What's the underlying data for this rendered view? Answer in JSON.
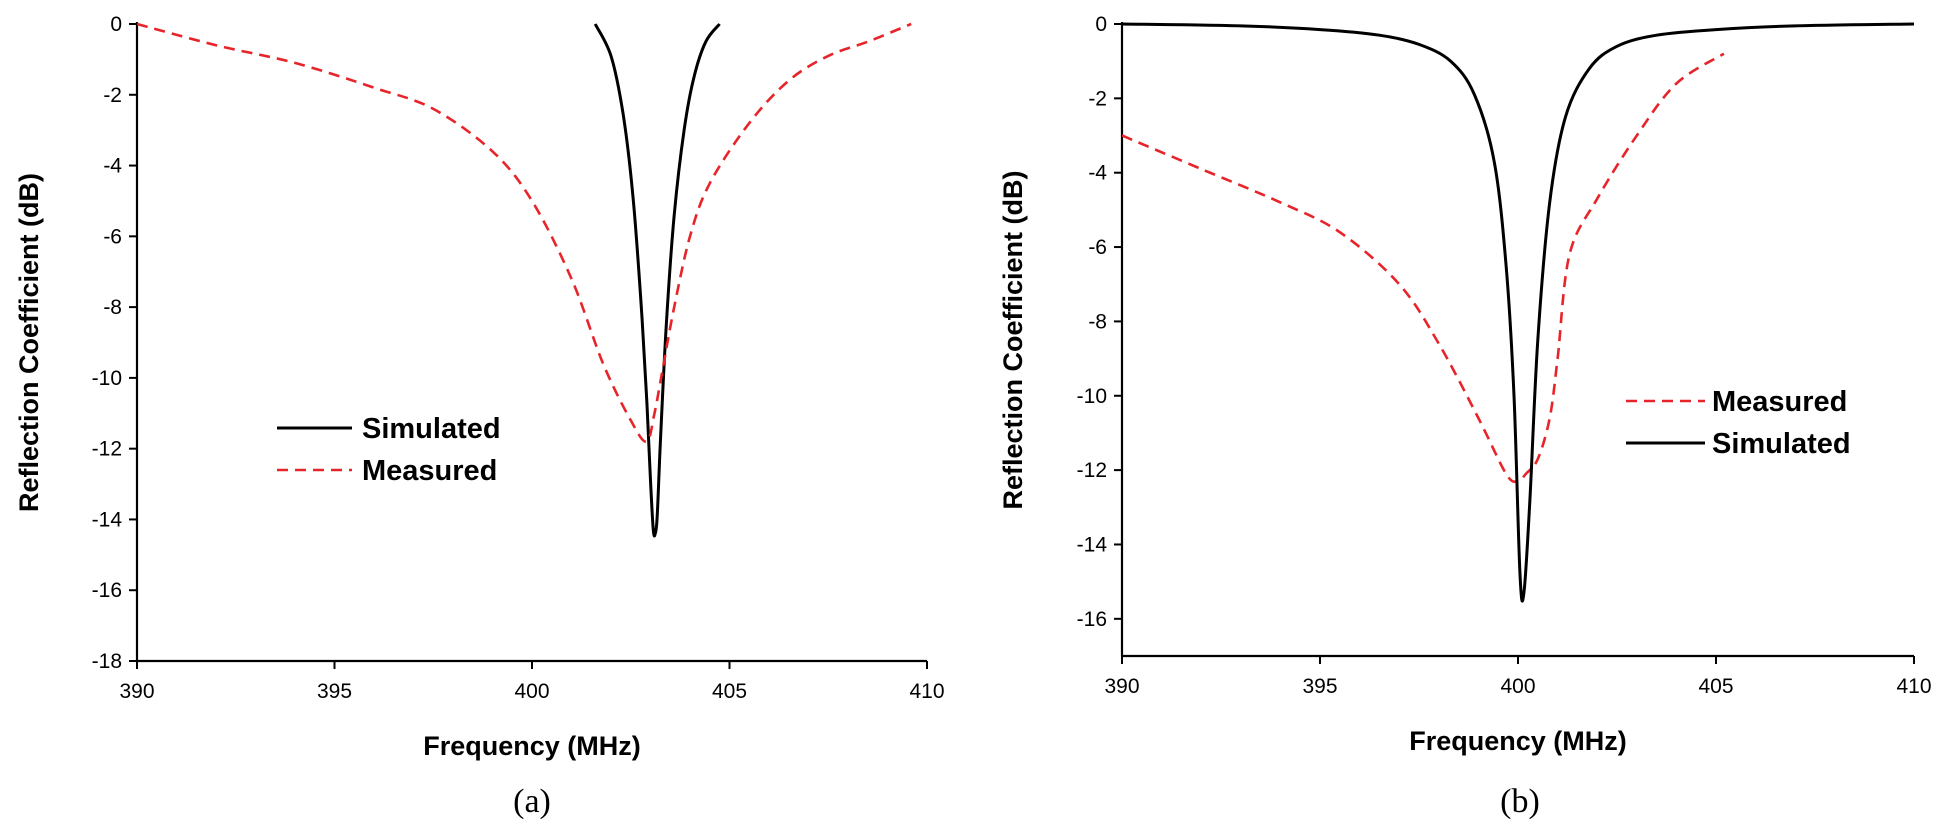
{
  "chart_data": [
    {
      "type": "line",
      "panel_label": "(a)",
      "xlabel": "Frequency (MHz)",
      "ylabel": "Reflection Coefficient (dB)",
      "xlim": [
        390,
        410
      ],
      "ylim": [
        -18,
        0
      ],
      "xticks": [
        390,
        395,
        400,
        405,
        410
      ],
      "yticks": [
        0,
        -2,
        -4,
        -6,
        -8,
        -10,
        -12,
        -14,
        -16,
        -18
      ],
      "grid": false,
      "legend": "center-left",
      "series": [
        {
          "name": "Simulated",
          "color": "#000000",
          "style": "solid",
          "x": [
            401.6,
            402.0,
            402.3,
            402.55,
            402.75,
            402.9,
            403.0,
            403.07,
            403.12,
            403.17,
            403.25,
            403.4,
            403.6,
            403.85,
            404.1,
            404.4,
            404.75
          ],
          "y": [
            0,
            -0.9,
            -2.5,
            -4.8,
            -7.7,
            -10.5,
            -12.9,
            -14.3,
            -14.4,
            -13.9,
            -11.8,
            -8.5,
            -5.4,
            -3.0,
            -1.5,
            -0.5,
            0
          ]
        },
        {
          "name": "Measured",
          "color": "#e8242b",
          "style": "dashed",
          "x": [
            390.0,
            392.0,
            394.0,
            396.0,
            397.5,
            399.0,
            400.0,
            401.0,
            401.8,
            402.5,
            402.9,
            403.1,
            403.3,
            403.6,
            404.0,
            404.5,
            405.5,
            406.5,
            407.5,
            408.5,
            409.6
          ],
          "y": [
            0,
            -0.6,
            -1.1,
            -1.8,
            -2.4,
            -3.6,
            -5.0,
            -7.2,
            -9.6,
            -11.2,
            -11.8,
            -11.0,
            -9.8,
            -8.0,
            -6.0,
            -4.5,
            -2.8,
            -1.6,
            -0.9,
            -0.5,
            0
          ]
        }
      ]
    },
    {
      "type": "line",
      "panel_label": "(b)",
      "xlabel": "Frequency (MHz)",
      "ylabel": "Reflection Coefficient (dB)",
      "xlim": [
        390,
        410
      ],
      "ylim": [
        -17,
        0
      ],
      "xticks": [
        390,
        395,
        400,
        405,
        410
      ],
      "yticks": [
        0,
        -2,
        -4,
        -6,
        -8,
        -10,
        -12,
        -14,
        -16
      ],
      "grid": false,
      "legend": "center-right",
      "series": [
        {
          "name": "Measured",
          "color": "#e8242b",
          "style": "dashed",
          "x": [
            390.0,
            392.0,
            394.0,
            395.5,
            397.0,
            398.0,
            399.0,
            399.7,
            400.0,
            400.2,
            400.5,
            400.8,
            401.0,
            401.3,
            402.0,
            403.0,
            404.0,
            405.2
          ],
          "y": [
            -3.0,
            -3.9,
            -4.8,
            -5.6,
            -7.0,
            -8.6,
            -10.6,
            -12.1,
            -12.3,
            -12.1,
            -11.7,
            -10.6,
            -9.0,
            -6.2,
            -4.7,
            -3.0,
            -1.6,
            -0.8
          ]
        },
        {
          "name": "Simulated",
          "color": "#000000",
          "style": "solid",
          "x": [
            390.0,
            393.0,
            395.0,
            396.5,
            397.5,
            398.3,
            398.9,
            399.4,
            399.7,
            399.9,
            400.05,
            400.15,
            400.3,
            400.5,
            400.8,
            401.2,
            401.8,
            402.5,
            403.5,
            405.0,
            407.0,
            410.0
          ],
          "y": [
            0,
            -0.05,
            -0.15,
            -0.3,
            -0.55,
            -1.0,
            -1.9,
            -3.7,
            -6.5,
            -10.0,
            -14.8,
            -15.3,
            -12.8,
            -8.5,
            -4.8,
            -2.5,
            -1.2,
            -0.6,
            -0.3,
            -0.15,
            -0.05,
            0
          ]
        }
      ]
    }
  ]
}
